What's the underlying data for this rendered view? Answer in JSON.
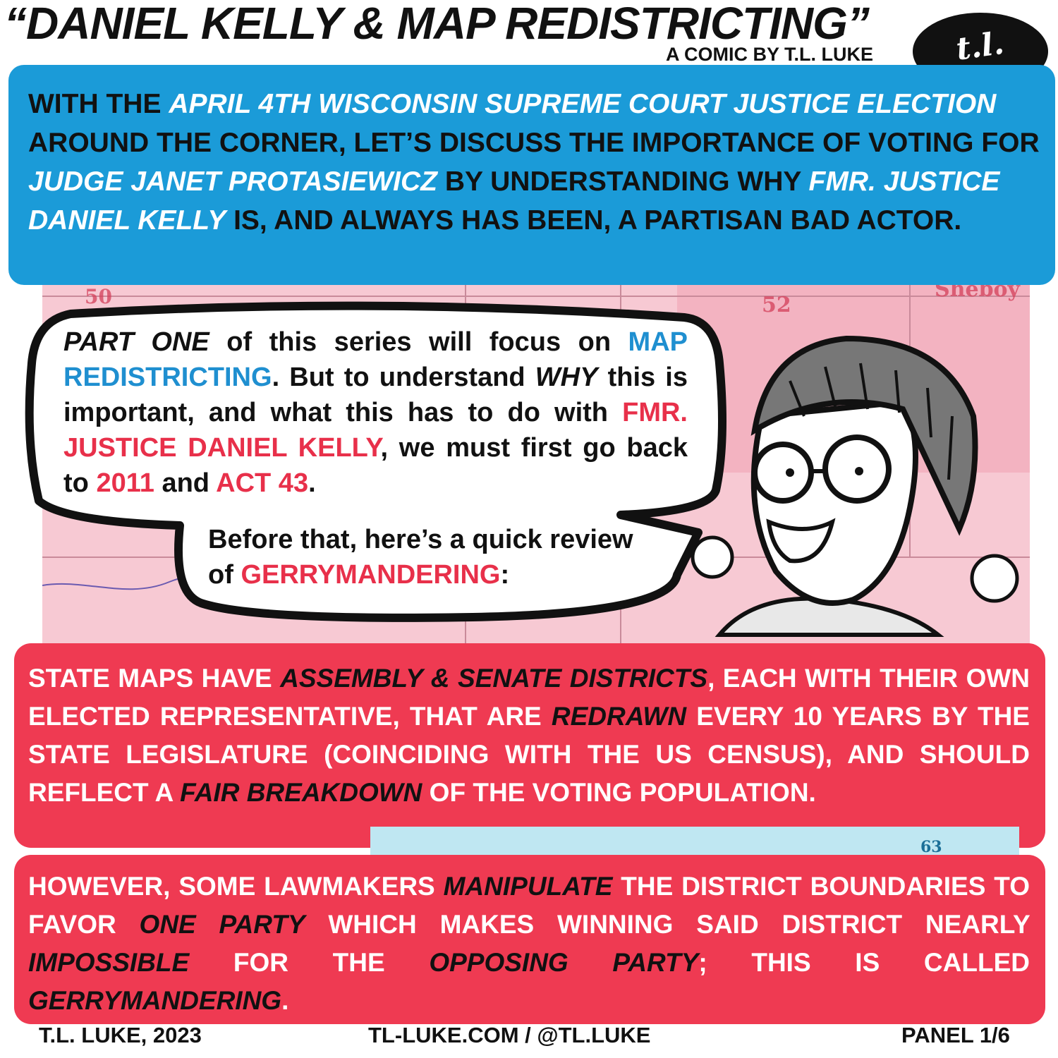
{
  "header": {
    "title": "“DANIEL KELLY & MAP REDISTRICTING”",
    "byline": "A COMIC BY T.L. LUKE",
    "logo": "t.l. luke"
  },
  "map_labels": [
    "50",
    "52",
    "Sheboy",
    "63"
  ],
  "intro": {
    "color": "#111111",
    "runs": [
      {
        "text": "WITH THE "
      },
      {
        "text": "APRIL 4TH WISCONSIN SUPREME COURT JUSTICE ELECTION",
        "color": "#ffffff",
        "italic": true
      },
      {
        "text": " AROUND THE CORNER, LET’S DISCUSS THE IMPORTANCE OF VOTING FOR "
      },
      {
        "text": "JUDGE JANET PROTASIEWICZ",
        "color": "#ffffff",
        "italic": true
      },
      {
        "text": " BY UNDERSTANDING WHY "
      },
      {
        "text": "FMR. JUSTICE DANIEL KELLY",
        "color": "#ffffff",
        "italic": true
      },
      {
        "text": " IS, AND ALWAYS HAS BEEN, A PARTISAN BAD ACTOR."
      }
    ]
  },
  "speech": {
    "color": "#111111",
    "paragraphs": [
      [
        {
          "text": "PART ONE",
          "italic": true
        },
        {
          "text": " of this series will focus on "
        },
        {
          "text": "MAP REDISTRICTING",
          "color": "#1f8fd0"
        },
        {
          "text": ". But to understand "
        },
        {
          "text": "WHY",
          "italic": true
        },
        {
          "text": " this is important, and what this has to do with "
        },
        {
          "text": "FMR. JUSTICE DANIEL KELLY",
          "color": "#e8304a"
        },
        {
          "text": ", we must first go back to "
        },
        {
          "text": "2011",
          "color": "#e8304a"
        },
        {
          "text": " and "
        },
        {
          "text": "ACT 43",
          "color": "#e8304a"
        },
        {
          "text": "."
        }
      ],
      [
        {
          "text": "Before that, here’s a quick review of "
        },
        {
          "text": "GERRYMANDERING",
          "color": "#e8304a"
        },
        {
          "text": ":"
        }
      ]
    ]
  },
  "explanation": {
    "color": "#ffffff",
    "paragraphs": [
      [
        {
          "text": "STATE MAPS HAVE "
        },
        {
          "text": "ASSEMBLY & SENATE DISTRICTS",
          "color": "#111111",
          "italic": true
        },
        {
          "text": ", EACH WITH THEIR OWN ELECTED REPRESENTATIVE, THAT ARE "
        },
        {
          "text": "REDRAWN",
          "color": "#111111",
          "italic": true
        },
        {
          "text": " EVERY 10 YEARS BY THE STATE LEGISLATURE (COINCIDING WITH THE US CENSUS), AND SHOULD REFLECT A "
        },
        {
          "text": "FAIR BREAKDOWN",
          "color": "#111111",
          "italic": true
        },
        {
          "text": " OF THE VOTING POPULATION."
        }
      ],
      [
        {
          "text": "HOWEVER, SOME LAWMAKERS "
        },
        {
          "text": "MANIPULATE",
          "color": "#111111",
          "italic": true
        },
        {
          "text": " THE DISTRICT BOUNDARIES TO FAVOR "
        },
        {
          "text": "ONE PARTY",
          "color": "#111111",
          "italic": true
        },
        {
          "text": " WHICH MAKES WINNING SAID DISTRICT NEARLY "
        },
        {
          "text": "IMPOSSIBLE",
          "color": "#111111",
          "italic": true
        },
        {
          "text": " FOR THE "
        },
        {
          "text": "OPPOSING PARTY",
          "color": "#111111",
          "italic": true
        },
        {
          "text": "; THIS IS CALLED "
        },
        {
          "text": "GERRYMANDERING",
          "color": "#111111",
          "italic": true
        },
        {
          "text": "."
        }
      ]
    ]
  },
  "footer": {
    "copyright": "T.L. LUKE, 2023",
    "links": "TL-LUKE.COM / @TL.LUKE",
    "panel": "PANEL 1/6"
  }
}
